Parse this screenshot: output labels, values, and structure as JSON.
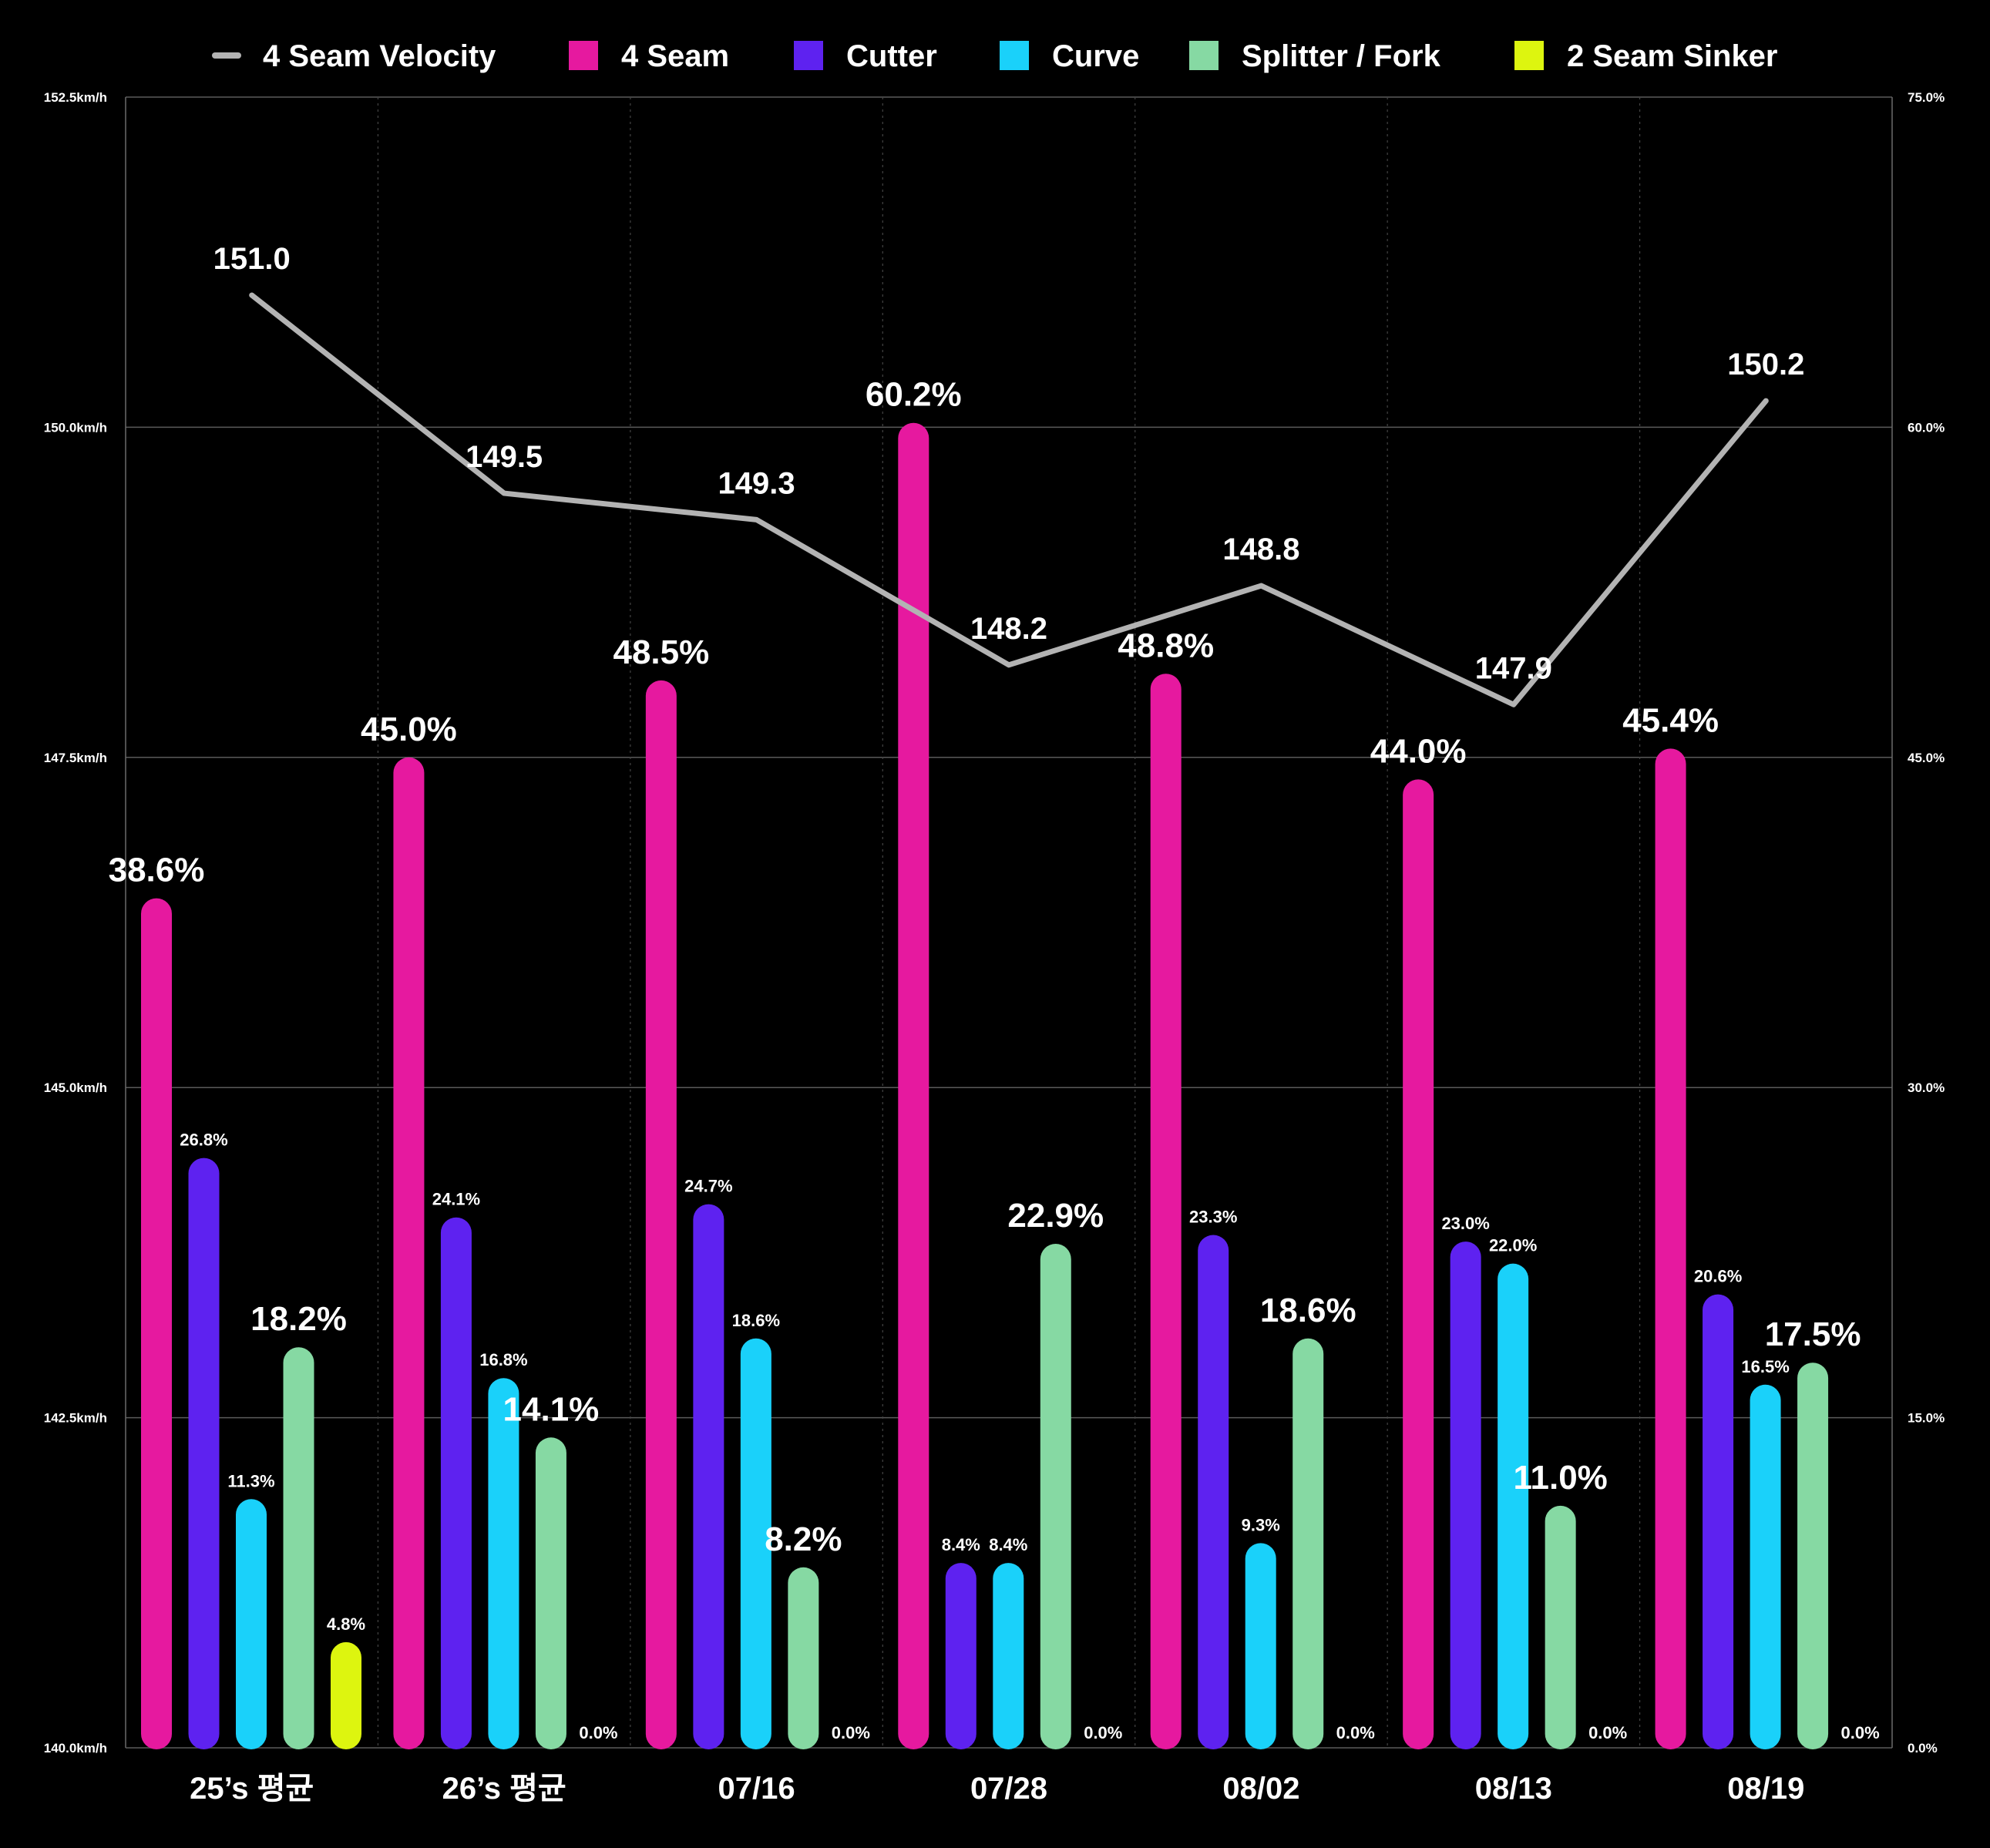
{
  "chart_data": {
    "type": "bar",
    "title": "",
    "xlabel": "",
    "ylabel": "",
    "legend_position": "top",
    "grid": true,
    "categories": [
      "25’s 평균",
      "26’s 평균",
      "07/16",
      "07/28",
      "08/02",
      "08/13",
      "08/19"
    ],
    "y_left": {
      "min": 140.0,
      "max": 152.5,
      "ticks": [
        "140.0km/h",
        "142.5km/h",
        "145.0km/h",
        "147.5km/h",
        "150.0km/h",
        "152.5km/h"
      ]
    },
    "y_right": {
      "min": 0,
      "max": 75,
      "ticks": [
        "0.0%",
        "15.0%",
        "30.0%",
        "45.0%",
        "60.0%",
        "75.0%"
      ]
    },
    "line_series": {
      "name": "4 Seam Velocity",
      "color": "#b3b3b3",
      "axis": "left",
      "values": [
        151.0,
        149.5,
        149.3,
        148.2,
        148.8,
        147.9,
        150.2
      ],
      "labels": [
        "151.0",
        "149.5",
        "149.3",
        "148.2",
        "148.8",
        "147.9",
        "150.2"
      ]
    },
    "series": [
      {
        "name": "4 Seam",
        "color": "#e6199f",
        "values": [
          38.6,
          45.0,
          48.5,
          60.2,
          48.8,
          44.0,
          45.4
        ],
        "labels": [
          "38.6%",
          "45.0%",
          "48.5%",
          "60.2%",
          "48.8%",
          "44.0%",
          "45.4%"
        ]
      },
      {
        "name": "Cutter",
        "color": "#5e22f0",
        "values": [
          26.8,
          24.1,
          24.7,
          8.4,
          23.3,
          23.0,
          20.6
        ],
        "labels": [
          "26.8%",
          "24.1%",
          "24.7%",
          "8.4%",
          "23.3%",
          "23.0%",
          "20.6%"
        ]
      },
      {
        "name": "Curve",
        "color": "#1ad1fa",
        "values": [
          11.3,
          16.8,
          18.6,
          8.4,
          9.3,
          22.0,
          16.5
        ],
        "labels": [
          "11.3%",
          "16.8%",
          "18.6%",
          "8.4%",
          "9.3%",
          "22.0%",
          "16.5%"
        ]
      },
      {
        "name": "Splitter / Fork",
        "color": "#86d9a3",
        "values": [
          18.2,
          14.1,
          8.2,
          22.9,
          18.6,
          11.0,
          17.5
        ],
        "labels": [
          "18.2%",
          "14.1%",
          "8.2%",
          "22.9%",
          "18.6%",
          "11.0%",
          "17.5%"
        ]
      },
      {
        "name": "2 Seam Sinker",
        "color": "#ddf50f",
        "values": [
          4.8,
          0.0,
          0.0,
          0.0,
          0.0,
          0.0,
          0.0
        ],
        "labels": [
          "4.8%",
          "0.0%",
          "0.0%",
          "0.0%",
          "0.0%",
          "0.0%",
          "0.0%"
        ]
      }
    ],
    "label_sizes": {
      "4 Seam": [
        "big",
        "big",
        "big",
        "big",
        "big",
        "big",
        "big"
      ],
      "Cutter": [
        "small",
        "small",
        "small",
        "small",
        "small",
        "small",
        "small"
      ],
      "Curve": [
        "small",
        "small",
        "small",
        "small",
        "small",
        "small",
        "small"
      ],
      "Splitter / Fork": [
        "big",
        "big",
        "big",
        "big",
        "big",
        "big",
        "big"
      ],
      "2 Seam Sinker": [
        "small",
        "small",
        "small",
        "small",
        "small",
        "small",
        "small"
      ]
    }
  }
}
